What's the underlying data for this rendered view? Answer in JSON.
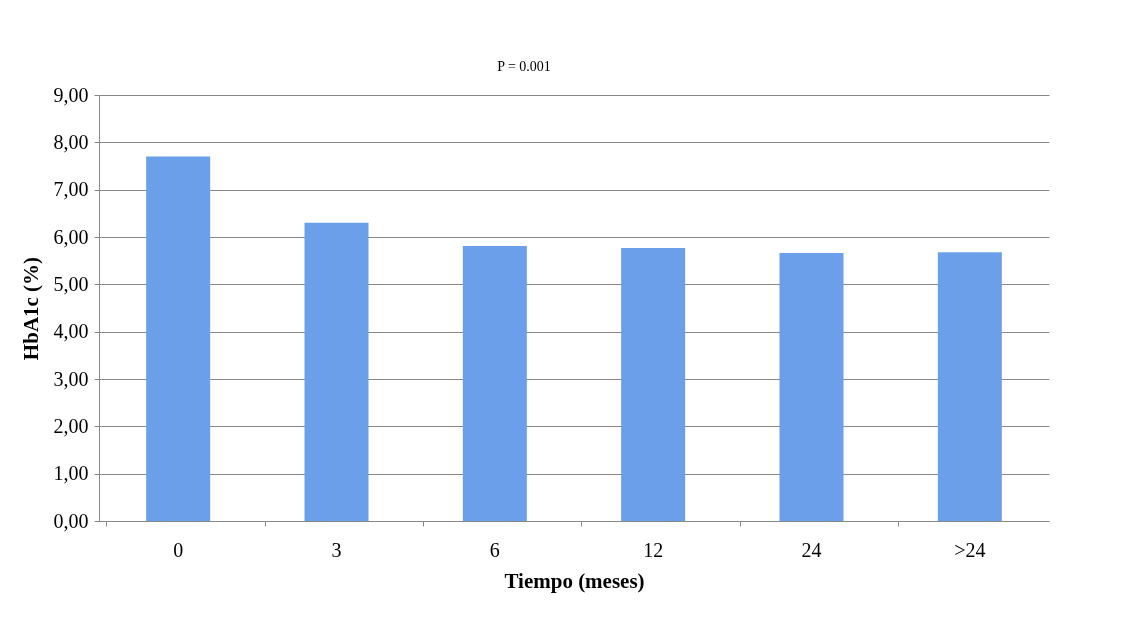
{
  "chart_data": {
    "type": "bar",
    "xlabel": "Tiempo (meses)",
    "ylabel": "HbA1c (%)",
    "categories": [
      "0",
      "3",
      "6",
      "12",
      "24",
      ">24"
    ],
    "values": [
      7.7,
      6.3,
      5.81,
      5.77,
      5.66,
      5.68
    ],
    "color": "#6b9fe9",
    "ylim": [
      0,
      9
    ],
    "yticks": [
      {
        "value": 0,
        "label": "0,00"
      },
      {
        "value": 1,
        "label": "1,00"
      },
      {
        "value": 2,
        "label": "2,00"
      },
      {
        "value": 3,
        "label": "3,00"
      },
      {
        "value": 4,
        "label": "4,00"
      },
      {
        "value": 5,
        "label": "5,00"
      },
      {
        "value": 6,
        "label": "6,00"
      },
      {
        "value": 7,
        "label": "7,00"
      },
      {
        "value": 8,
        "label": "8,00"
      },
      {
        "value": 9,
        "label": "9,00"
      }
    ],
    "grid": "y",
    "annotations": [
      "P = 0.001"
    ]
  }
}
